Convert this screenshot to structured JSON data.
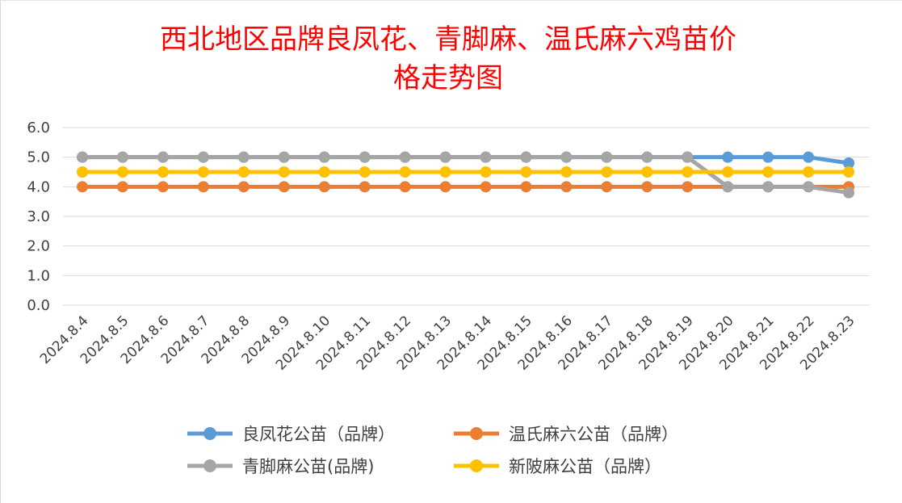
{
  "chart_data": {
    "type": "line",
    "title": "西北地区品牌良凤花、青脚麻、温氏麻六鸡苗价格走势图",
    "title_lines": [
      "西北地区品牌良凤花、青脚麻、温氏麻六鸡苗价",
      "格走势图"
    ],
    "xlabel": "",
    "ylabel": "",
    "ylim": [
      0,
      6
    ],
    "yticks": [
      "0.0",
      "1.0",
      "2.0",
      "3.0",
      "4.0",
      "5.0",
      "6.0"
    ],
    "grid": true,
    "legend_position": "bottom",
    "categories": [
      "2024.8.4",
      "2024.8.5",
      "2024.8.6",
      "2024.8.7",
      "2024.8.8",
      "2024.8.9",
      "2024.8.10",
      "2024.8.11",
      "2024.8.12",
      "2024.8.13",
      "2024.8.14",
      "2024.8.15",
      "2024.8.16",
      "2024.8.17",
      "2024.8.18",
      "2024.8.19",
      "2024.8.20",
      "2024.8.21",
      "2024.8.22",
      "2024.8.23"
    ],
    "series": [
      {
        "name": "良凤花公苗（品牌）",
        "color": "#5b9bd5",
        "values": [
          5,
          5,
          5,
          5,
          5,
          5,
          5,
          5,
          5,
          5,
          5,
          5,
          5,
          5,
          5,
          5,
          5,
          5,
          5,
          4.8
        ]
      },
      {
        "name": "温氏麻六公苗（品牌）",
        "color": "#ed7d31",
        "values": [
          4,
          4,
          4,
          4,
          4,
          4,
          4,
          4,
          4,
          4,
          4,
          4,
          4,
          4,
          4,
          4,
          4,
          4,
          4,
          4
        ]
      },
      {
        "name": "青脚麻公苗(品牌)",
        "color": "#a5a5a5",
        "values": [
          5,
          5,
          5,
          5,
          5,
          5,
          5,
          5,
          5,
          5,
          5,
          5,
          5,
          5,
          5,
          5,
          4,
          4,
          4,
          3.8
        ]
      },
      {
        "name": "新陂麻公苗（品牌）",
        "color": "#ffc000",
        "values": [
          4.5,
          4.5,
          4.5,
          4.5,
          4.5,
          4.5,
          4.5,
          4.5,
          4.5,
          4.5,
          4.5,
          4.5,
          4.5,
          4.5,
          4.5,
          4.5,
          4.5,
          4.5,
          4.5,
          4.5
        ]
      }
    ]
  }
}
